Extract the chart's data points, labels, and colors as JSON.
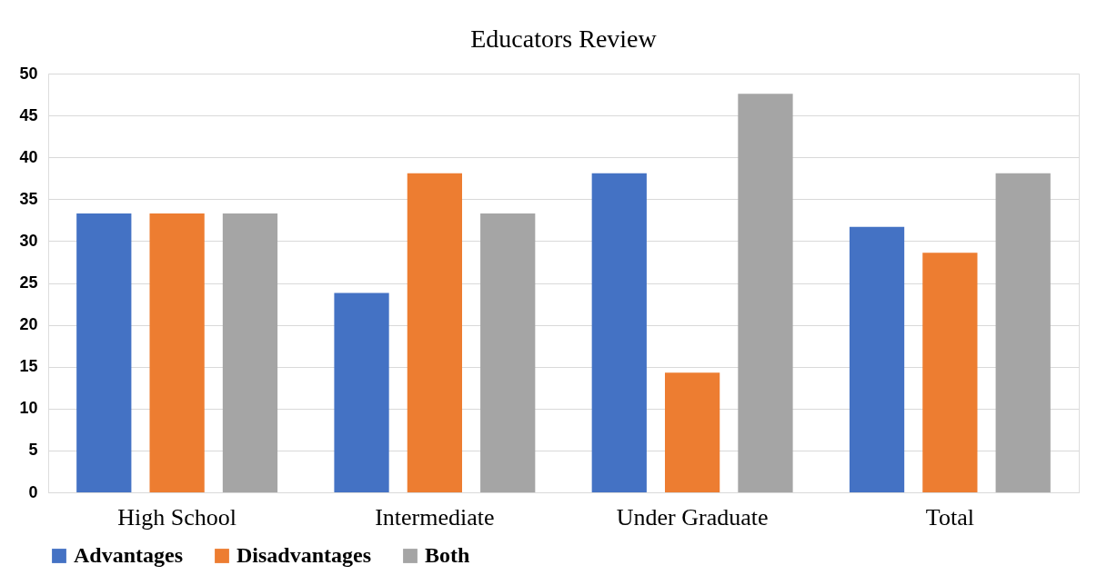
{
  "chart_data": {
    "type": "bar",
    "title": "Educators Review",
    "categories": [
      "High School",
      "Intermediate",
      "Under Graduate",
      "Total"
    ],
    "series": [
      {
        "name": "Advantages",
        "color": "#4472c4",
        "values": [
          33.3,
          23.8,
          38.1,
          31.7
        ]
      },
      {
        "name": "Disadvantages",
        "color": "#ed7d31",
        "values": [
          33.3,
          38.1,
          14.3,
          28.6
        ]
      },
      {
        "name": "Both",
        "color": "#a5a5a5",
        "values": [
          33.3,
          33.3,
          47.6,
          38.1
        ]
      }
    ],
    "ylim": [
      0,
      50
    ],
    "yticks": [
      0,
      5,
      10,
      15,
      20,
      25,
      30,
      35,
      40,
      45,
      50
    ],
    "grid": "y",
    "legend": "bottom"
  }
}
